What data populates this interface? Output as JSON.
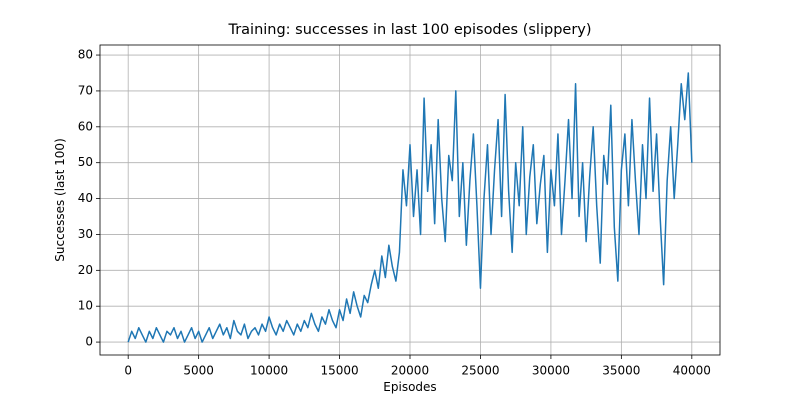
{
  "chart_data": {
    "type": "line",
    "title": "Training: successes in last 100 episodes (slippery)",
    "x_label": "Episodes",
    "y_label": "Successes (last 100)",
    "grid": true,
    "xlim": [
      -2000,
      42000
    ],
    "ylim": [
      -3.6,
      82.8
    ],
    "xticks": [
      0,
      5000,
      10000,
      15000,
      20000,
      25000,
      30000,
      35000,
      40000
    ],
    "yticks": [
      0,
      10,
      20,
      30,
      40,
      50,
      60,
      70,
      80
    ],
    "x": [
      0,
      250,
      500,
      750,
      1000,
      1250,
      1500,
      1750,
      2000,
      2250,
      2500,
      2750,
      3000,
      3250,
      3500,
      3750,
      4000,
      4250,
      4500,
      4750,
      5000,
      5250,
      5500,
      5750,
      6000,
      6250,
      6500,
      6750,
      7000,
      7250,
      7500,
      7750,
      8000,
      8250,
      8500,
      8750,
      9000,
      9250,
      9500,
      9750,
      10000,
      10250,
      10500,
      10750,
      11000,
      11250,
      11500,
      11750,
      12000,
      12250,
      12500,
      12750,
      13000,
      13250,
      13500,
      13750,
      14000,
      14250,
      14500,
      14750,
      15000,
      15250,
      15500,
      15750,
      16000,
      16250,
      16500,
      16750,
      17000,
      17250,
      17500,
      17750,
      18000,
      18250,
      18500,
      18750,
      19000,
      19250,
      19500,
      19750,
      20000,
      20250,
      20500,
      20750,
      21000,
      21250,
      21500,
      21750,
      22000,
      22250,
      22500,
      22750,
      23000,
      23250,
      23500,
      23750,
      24000,
      24250,
      24500,
      24750,
      25000,
      25250,
      25500,
      25750,
      26000,
      26250,
      26500,
      26750,
      27000,
      27250,
      27500,
      27750,
      28000,
      28250,
      28500,
      28750,
      29000,
      29250,
      29500,
      29750,
      30000,
      30250,
      30500,
      30750,
      31000,
      31250,
      31500,
      31750,
      32000,
      32250,
      32500,
      32750,
      33000,
      33250,
      33500,
      33750,
      34000,
      34250,
      34500,
      34750,
      35000,
      35250,
      35500,
      35750,
      36000,
      36250,
      36500,
      36750,
      37000,
      37250,
      37500,
      37750,
      38000,
      38250,
      38500,
      38750,
      39000,
      39250,
      39500,
      39750,
      40000
    ],
    "series": [
      {
        "color": "#1f77b4",
        "values": [
          0,
          3,
          1,
          4,
          2,
          0,
          3,
          1,
          4,
          2,
          0,
          3,
          2,
          4,
          1,
          3,
          0,
          2,
          4,
          1,
          3,
          0,
          2,
          4,
          1,
          3,
          5,
          2,
          4,
          1,
          6,
          3,
          2,
          5,
          1,
          3,
          4,
          2,
          5,
          3,
          7,
          4,
          2,
          5,
          3,
          6,
          4,
          2,
          5,
          3,
          6,
          4,
          8,
          5,
          3,
          7,
          5,
          9,
          6,
          4,
          9,
          6,
          12,
          8,
          14,
          10,
          7,
          13,
          11,
          16,
          20,
          15,
          24,
          18,
          27,
          21,
          17,
          25,
          48,
          38,
          55,
          35,
          48,
          30,
          68,
          42,
          55,
          33,
          62,
          40,
          28,
          52,
          45,
          70,
          35,
          50,
          27,
          45,
          58,
          38,
          15,
          40,
          55,
          30,
          48,
          62,
          35,
          69,
          42,
          25,
          50,
          38,
          60,
          30,
          46,
          55,
          33,
          44,
          52,
          25,
          48,
          38,
          58,
          30,
          45,
          62,
          40,
          72,
          35,
          50,
          28,
          46,
          60,
          38,
          22,
          52,
          44,
          66,
          32,
          17,
          48,
          58,
          38,
          62,
          45,
          30,
          55,
          40,
          68,
          42,
          58,
          35,
          16,
          45,
          60,
          40,
          55,
          72,
          62,
          75,
          50
        ]
      }
    ]
  }
}
